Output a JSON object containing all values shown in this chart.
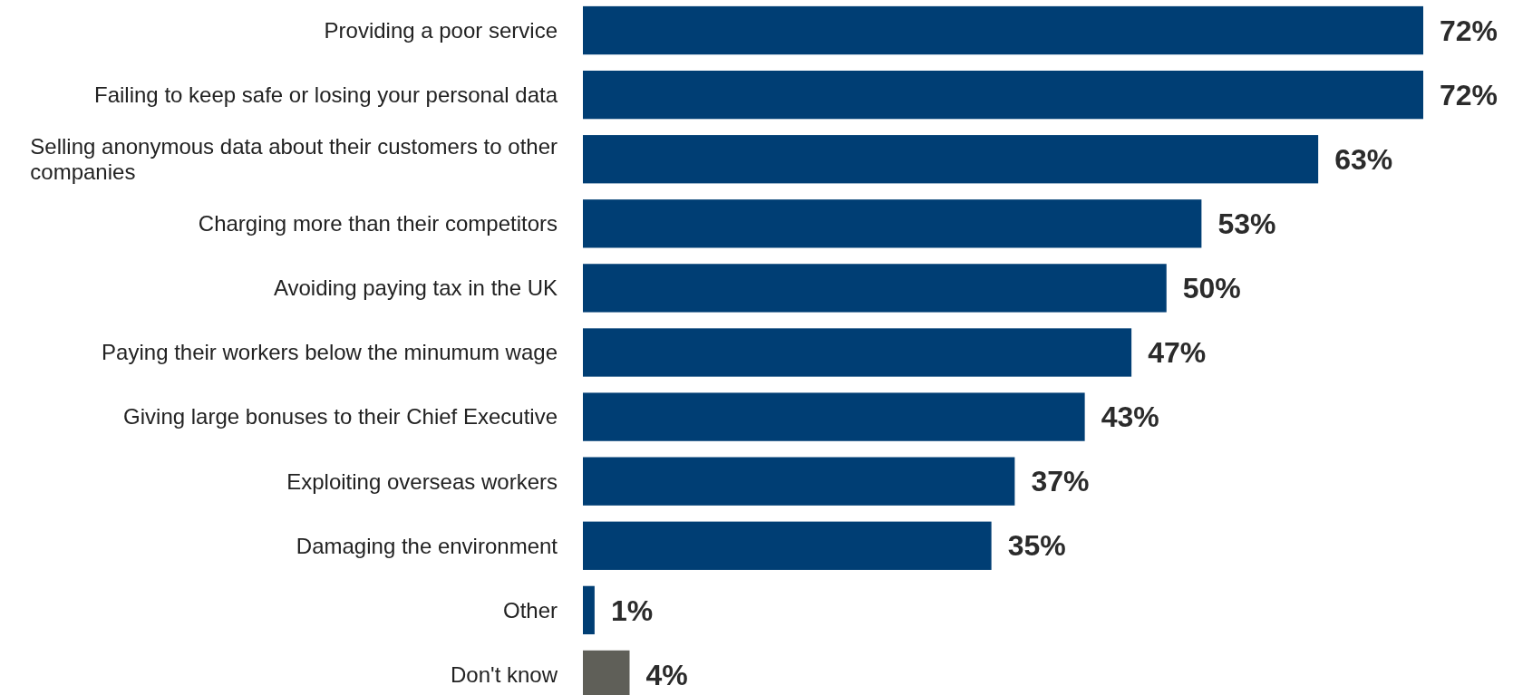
{
  "chart_data": {
    "type": "bar",
    "orientation": "horizontal",
    "categories": [
      "Providing a poor service",
      "Failing to keep safe or losing your personal data",
      "Selling anonymous data about their customers to other companies",
      "Charging more than their competitors",
      "Avoiding paying tax in the UK",
      "Paying their workers below the minumum wage",
      "Giving large bonuses to their Chief Executive",
      "Exploiting overseas workers",
      "Damaging the environment",
      "Other",
      "Don't know"
    ],
    "values": [
      72,
      72,
      63,
      53,
      50,
      47,
      43,
      37,
      35,
      1,
      4
    ],
    "value_labels": [
      "72%",
      "72%",
      "63%",
      "53%",
      "50%",
      "47%",
      "43%",
      "37%",
      "35%",
      "1%",
      "4%"
    ],
    "colors": [
      "#003e74",
      "#003e74",
      "#003e74",
      "#003e74",
      "#003e74",
      "#003e74",
      "#003e74",
      "#003e74",
      "#003e74",
      "#003e74",
      "#5f5f58"
    ]
  }
}
